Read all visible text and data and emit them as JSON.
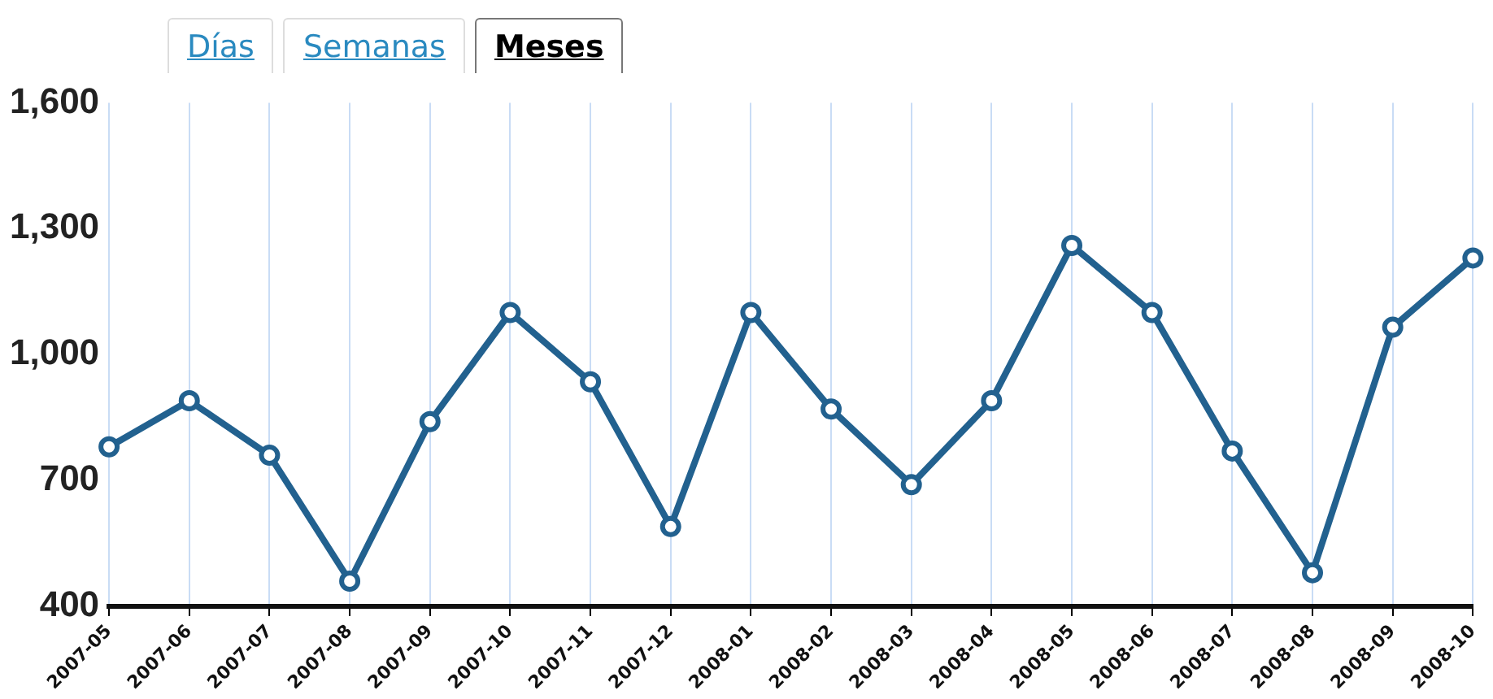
{
  "chart_data": {
    "type": "line",
    "categories": [
      "2007-05",
      "2007-06",
      "2007-07",
      "2007-08",
      "2007-09",
      "2007-10",
      "2007-11",
      "2007-12",
      "2008-01",
      "2008-02",
      "2008-03",
      "2008-04",
      "2008-05",
      "2008-06",
      "2008-07",
      "2008-08",
      "2008-09",
      "2008-10"
    ],
    "series": [
      {
        "color": "#22618f",
        "values": [
          780,
          890,
          760,
          460,
          840,
          1100,
          935,
          590,
          1100,
          870,
          690,
          890,
          1260,
          1100,
          770,
          480,
          1065,
          1230
        ]
      }
    ],
    "ylim": [
      400,
      1600
    ],
    "yticks": [
      400,
      700,
      {
        "value": 1000,
        "label": "1,000"
      },
      {
        "value": 1300,
        "label": "1,300"
      },
      {
        "value": 1600,
        "label": "1,600"
      }
    ],
    "grid": "x",
    "marker": "circle",
    "line_style": "solid",
    "legend": false,
    "annotations": [
      "Días",
      "Semanas",
      "Meses"
    ]
  }
}
